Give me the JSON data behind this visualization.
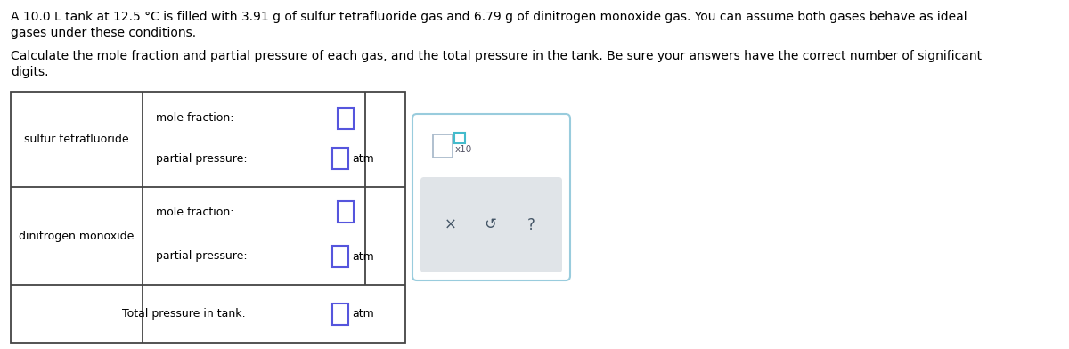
{
  "title_line1": "A 10.0 L tank at 12.5 °C is filled with 3.91 g of sulfur tetrafluoride gas and 6.79 g of dinitrogen monoxide gas. You can assume both gases behave as ideal",
  "title_line2": "gases under these conditions.",
  "subtitle_line1": "Calculate the mole fraction and partial pressure of each gas, and the total pressure in the tank. Be sure your answers have the correct number of significant",
  "subtitle_line2": "digits.",
  "gas1_label": "sulfur tetrafluoride",
  "gas2_label": "dinitrogen monoxide",
  "mole_fraction_label": "mole fraction:",
  "partial_pressure_label": "partial pressure:",
  "total_pressure_label": "Total pressure in tank:",
  "unit_label": "atm",
  "x10_label": "x10",
  "table_border": "#444444",
  "input_box_color": "#5555dd",
  "popup_border": "#99ccdd",
  "popup_bg": "#ffffff",
  "popup_action_bg": "#e0e4e8",
  "text_color": "#000000",
  "sym_color": "#445566",
  "tiny_box_color": "#44bbcc",
  "font_size_body": 10.0,
  "font_size_table": 9.0,
  "font_size_sym": 12.0
}
